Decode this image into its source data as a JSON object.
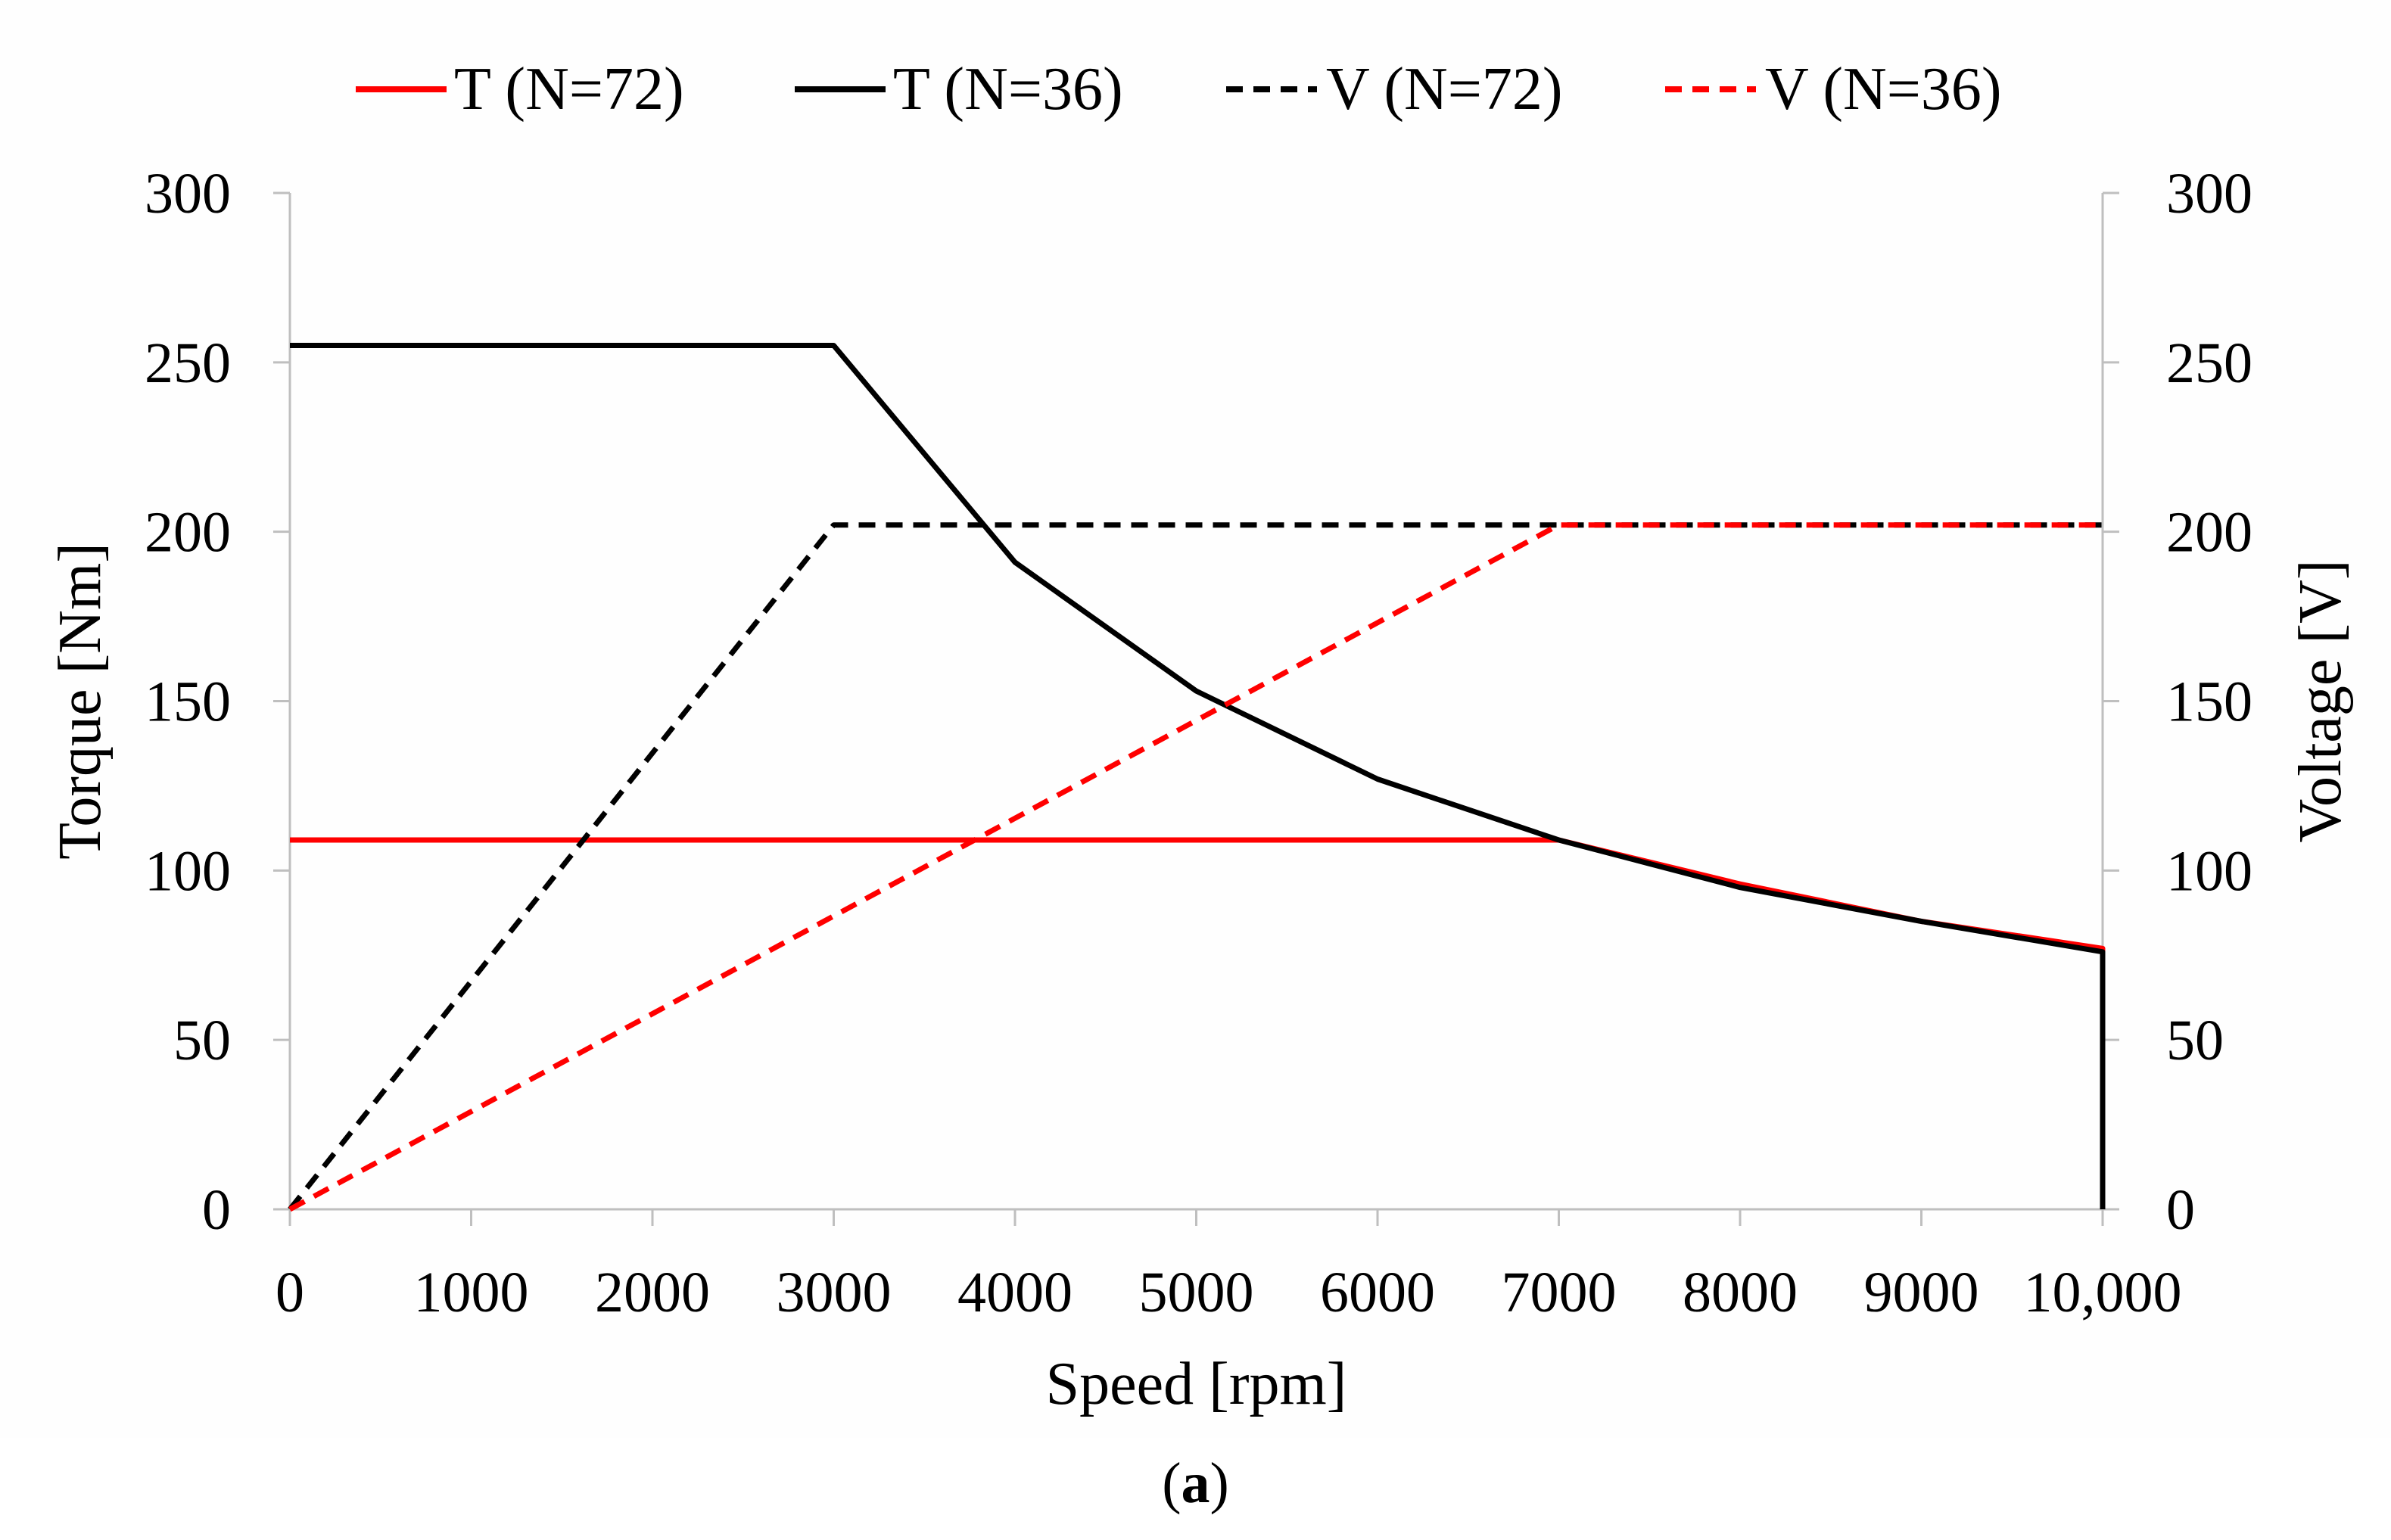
{
  "chart_data": {
    "type": "line",
    "title": "",
    "xlabel": "Speed [rpm]",
    "ylabel_left": "Torque [Nm]",
    "ylabel_right": "Voltage [V]",
    "xlim": [
      0,
      10000
    ],
    "ylim_left": [
      0,
      300
    ],
    "ylim_right": [
      0,
      300
    ],
    "x_ticks": [
      0,
      1000,
      2000,
      3000,
      4000,
      5000,
      6000,
      7000,
      8000,
      9000,
      10000
    ],
    "x_tick_labels": [
      "0",
      "1000",
      "2000",
      "3000",
      "4000",
      "5000",
      "6000",
      "7000",
      "8000",
      "9000",
      "10,000"
    ],
    "y_ticks": [
      0,
      50,
      100,
      150,
      200,
      250,
      300
    ],
    "y_tick_labels": [
      "0",
      "50",
      "100",
      "150",
      "200",
      "250",
      "300"
    ],
    "grid": false,
    "legend_position": "top",
    "series": [
      {
        "name": "T (N=72)",
        "axis": "left",
        "color": "#ff0000",
        "dash": "solid",
        "x": [
          0,
          7000,
          8000,
          9000,
          10000,
          10000
        ],
        "y": [
          109,
          109,
          96,
          85,
          77,
          0
        ]
      },
      {
        "name": "T (N=36)",
        "axis": "left",
        "color": "#000000",
        "dash": "solid",
        "x": [
          0,
          3000,
          4000,
          5000,
          6000,
          7000,
          8000,
          9000,
          10000,
          10000
        ],
        "y": [
          255,
          255,
          191,
          153,
          127,
          109,
          95,
          85,
          76,
          0
        ]
      },
      {
        "name": "V (N=72)",
        "axis": "right",
        "color": "#000000",
        "dash": "dashed",
        "x": [
          0,
          3000,
          10000
        ],
        "y": [
          0,
          202,
          202
        ]
      },
      {
        "name": "V (N=36)",
        "axis": "right",
        "color": "#ff0000",
        "dash": "dashed",
        "x": [
          0,
          7000,
          10000
        ],
        "y": [
          0,
          202,
          202
        ]
      }
    ]
  },
  "caption": {
    "prefix": "(",
    "label": "a",
    "suffix": ")"
  }
}
